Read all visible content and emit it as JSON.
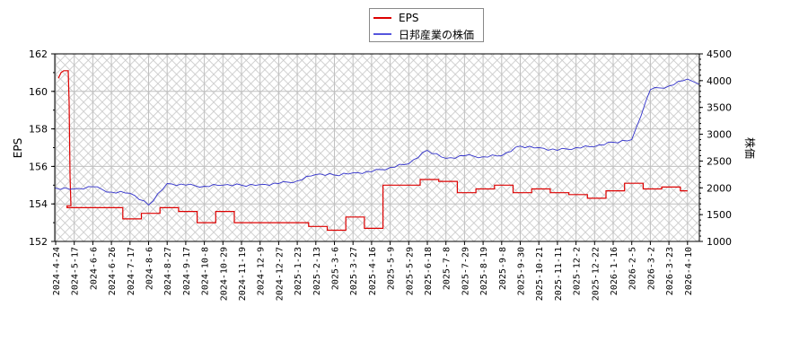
{
  "chart_data": {
    "type": "line",
    "title": "",
    "legend": {
      "position": "top-center",
      "entries": [
        {
          "label": "EPS",
          "color": "#dd0000"
        },
        {
          "label": "日邦産業の株価",
          "color": "#3333cc"
        }
      ]
    },
    "xlabel": "",
    "ylabel": "EPS",
    "y2label": "株価",
    "ylim": [
      152,
      162
    ],
    "y2lim": [
      1000,
      4500
    ],
    "yticks": [
      152,
      154,
      156,
      158,
      160,
      162
    ],
    "y2ticks": [
      1000,
      1500,
      2000,
      2500,
      3000,
      3500,
      4000,
      4500
    ],
    "grid": true,
    "categories": [
      "2024-4-24",
      "2024-5-17",
      "2024-6-6",
      "2024-6-26",
      "2024-7-17",
      "2024-8-6",
      "2024-8-27",
      "2024-9-17",
      "2024-10-8",
      "2024-10-29",
      "2024-11-19",
      "2024-12-9",
      "2024-12-27",
      "2025-1-23",
      "2025-2-13",
      "2025-3-6",
      "2025-3-27",
      "2025-4-16",
      "2025-5-9",
      "2025-5-29",
      "2025-6-18",
      "2025-7-8",
      "2025-7-29",
      "2025-8-19",
      "2025-9-8",
      "2025-9-30",
      "2025-10-21",
      "2025-11-11",
      "2025-12-2",
      "2025-12-22",
      "2026-1-16",
      "2026-2-5",
      "2026-3-2",
      "2026-3-23",
      "2026-4-10"
    ],
    "series": [
      {
        "name": "EPS",
        "axis": "left",
        "color": "#dd0000",
        "values": [
          160.8,
          153.8,
          153.8,
          153.8,
          153.2,
          153.5,
          153.8,
          153.6,
          153.0,
          153.6,
          153.0,
          153.0,
          153.0,
          153.0,
          152.8,
          152.6,
          153.3,
          152.7,
          155.0,
          155.0,
          155.3,
          155.2,
          154.6,
          154.8,
          155.0,
          154.6,
          154.8,
          154.6,
          154.5,
          154.3,
          154.7,
          155.1,
          154.8,
          154.9,
          154.7
        ]
      },
      {
        "name": "日邦産業の株価",
        "axis": "right",
        "color": "#3333cc",
        "values": [
          2000,
          1980,
          2020,
          1920,
          1900,
          1680,
          2080,
          2050,
          2030,
          2050,
          2050,
          2060,
          2080,
          2130,
          2250,
          2240,
          2280,
          2300,
          2380,
          2450,
          2700,
          2550,
          2600,
          2580,
          2600,
          2780,
          2750,
          2700,
          2750,
          2770,
          2850,
          2900,
          3830,
          3900,
          4030
        ]
      }
    ]
  }
}
